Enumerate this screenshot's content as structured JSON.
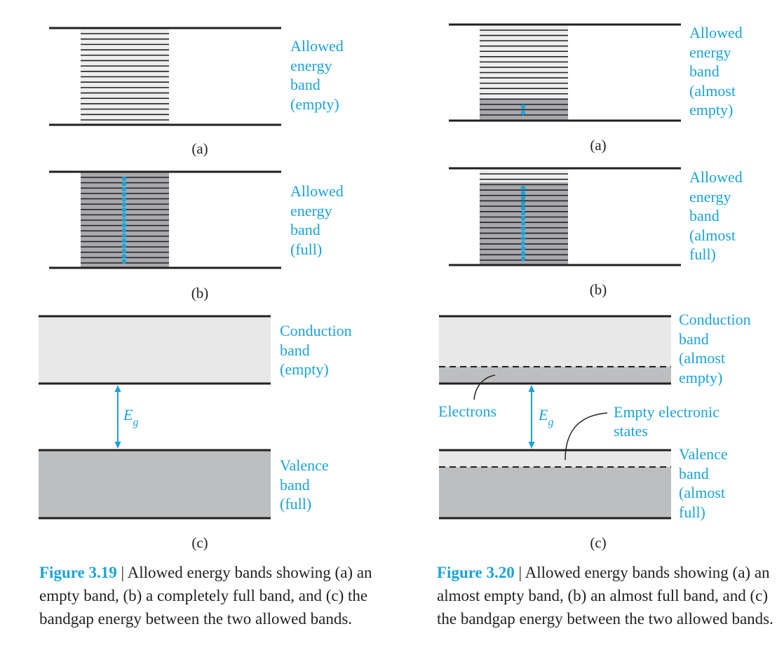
{
  "figures": [
    {
      "id": "fig319",
      "panels": {
        "a": {
          "sublabel": "(a)",
          "label_lines": [
            "Allowed",
            "energy",
            "band",
            "(empty)"
          ],
          "filled_states": 0
        },
        "b": {
          "sublabel": "(b)",
          "label_lines": [
            "Allowed",
            "energy",
            "band",
            "(full)"
          ],
          "filled_states": 1.0
        },
        "c": {
          "sublabel": "(c)",
          "conduction_lines": [
            "Conduction",
            "band",
            "(empty)"
          ],
          "valence_lines": [
            "Valence",
            "band",
            "(full)"
          ],
          "gap_symbol": "E",
          "gap_subscript": "g"
        }
      },
      "caption": {
        "number": "Figure 3.19",
        "separator": " | ",
        "text": "Allowed energy bands showing (a) an empty band, (b) a completely full band, and (c) the bandgap energy between the two allowed bands."
      }
    },
    {
      "id": "fig320",
      "panels": {
        "a": {
          "sublabel": "(a)",
          "label_lines": [
            "Allowed",
            "energy",
            "band",
            "(almost",
            "empty)"
          ],
          "filled_states": "bottom 2 levels"
        },
        "b": {
          "sublabel": "(b)",
          "label_lines": [
            "Allowed",
            "energy",
            "band",
            "(almost",
            "full)"
          ],
          "filled_states": "all but top 2 levels"
        },
        "c": {
          "sublabel": "(c)",
          "conduction_lines": [
            "Conduction",
            "band",
            "(almost",
            "empty)"
          ],
          "valence_lines": [
            "Valence",
            "band",
            "(almost",
            "full)"
          ],
          "gap_symbol": "E",
          "gap_subscript": "g",
          "electrons_label": "Electrons",
          "empty_states_lines": [
            "Empty electronic",
            "states"
          ]
        }
      },
      "caption": {
        "number": "Figure 3.20",
        "separator": " | ",
        "text": "Allowed energy bands showing (a) an almost empty band, (b) an almost full band, and (c) the bandgap energy between the two allowed bands."
      }
    }
  ],
  "colors": {
    "accent": "#1aa3db",
    "line": "#231f20",
    "band_light": "#e8e8e8",
    "band_dark": "#bdbec0",
    "strip_light": "#eeeeee",
    "strip_dark": "#a7a9ac",
    "dot": "#1aa3db"
  }
}
